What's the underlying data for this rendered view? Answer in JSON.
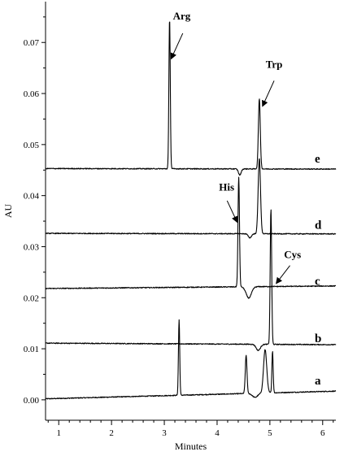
{
  "chart_data": {
    "type": "line",
    "xlabel": "Minutes",
    "ylabel": "AU",
    "xlim": [
      0.75,
      6.25
    ],
    "ylim": [
      -0.004,
      0.078
    ],
    "x_ticks": [
      1,
      2,
      3,
      4,
      5,
      6
    ],
    "x_minor_step": 0.2,
    "y_ticks": [
      0.0,
      0.01,
      0.02,
      0.03,
      0.04,
      0.05,
      0.06,
      0.07
    ],
    "y_tick_labels": [
      "0.00",
      "0.01",
      "0.02",
      "0.03",
      "0.04",
      "0.05",
      "0.06",
      "0.07"
    ],
    "x_range": [
      0.75,
      6.25
    ],
    "series": [
      {
        "name": "a",
        "baseline_start": 0.0002,
        "baseline_end": 0.0017,
        "features": [
          {
            "x": 3.28,
            "h": 0.0148,
            "w": 0.012
          },
          {
            "x": 4.55,
            "h": 0.0075,
            "w": 0.016
          },
          {
            "x": 4.72,
            "h": -0.0008,
            "w": 0.05
          },
          {
            "x": 4.91,
            "h": 0.0085,
            "w": 0.03
          },
          {
            "x": 5.05,
            "h": 0.0082,
            "w": 0.012
          }
        ]
      },
      {
        "name": "b",
        "baseline_start": 0.0111,
        "baseline_end": 0.0108,
        "features": [
          {
            "x": 4.78,
            "h": -0.0012,
            "w": 0.04
          },
          {
            "x": 5.02,
            "h": 0.0265,
            "w": 0.014
          }
        ]
      },
      {
        "name": "c",
        "baseline_start": 0.0218,
        "baseline_end": 0.0223,
        "features": [
          {
            "x": 4.41,
            "h": 0.0215,
            "w": 0.014
          },
          {
            "x": 4.6,
            "h": -0.0022,
            "w": 0.05
          }
        ]
      },
      {
        "name": "d",
        "baseline_start": 0.0326,
        "baseline_end": 0.0325,
        "features": [
          {
            "x": 4.62,
            "h": -0.0008,
            "w": 0.03
          },
          {
            "x": 4.8,
            "h": 0.0148,
            "w": 0.022
          }
        ]
      },
      {
        "name": "e",
        "baseline_start": 0.0453,
        "baseline_end": 0.0452,
        "features": [
          {
            "x": 3.1,
            "h": 0.0295,
            "w": 0.013
          },
          {
            "x": 4.43,
            "h": -0.0012,
            "w": 0.025
          },
          {
            "x": 4.8,
            "h": 0.0137,
            "w": 0.018
          }
        ]
      }
    ],
    "trace_labels": [
      {
        "text": "e",
        "x": 5.85,
        "y": 0.0465
      },
      {
        "text": "d",
        "x": 5.85,
        "y": 0.0335
      },
      {
        "text": "c",
        "x": 5.85,
        "y": 0.0225
      },
      {
        "text": "b",
        "x": 5.85,
        "y": 0.0113
      },
      {
        "text": "a",
        "x": 5.85,
        "y": 0.003
      }
    ],
    "annotations": [
      {
        "text": "Arg",
        "x": 3.33,
        "y": 0.0745,
        "arrow_from": [
          3.35,
          0.0718
        ],
        "arrow_to": [
          3.13,
          0.0668
        ]
      },
      {
        "text": "Trp",
        "x": 5.08,
        "y": 0.065,
        "arrow_from": [
          5.08,
          0.0625
        ],
        "arrow_to": [
          4.86,
          0.0575
        ]
      },
      {
        "text": "His",
        "x": 4.18,
        "y": 0.041,
        "arrow_from": [
          4.19,
          0.039
        ],
        "arrow_to": [
          4.38,
          0.0348
        ]
      },
      {
        "text": "Cys",
        "x": 5.43,
        "y": 0.0278,
        "arrow_from": [
          5.38,
          0.0263
        ],
        "arrow_to": [
          5.12,
          0.0228
        ]
      }
    ]
  }
}
